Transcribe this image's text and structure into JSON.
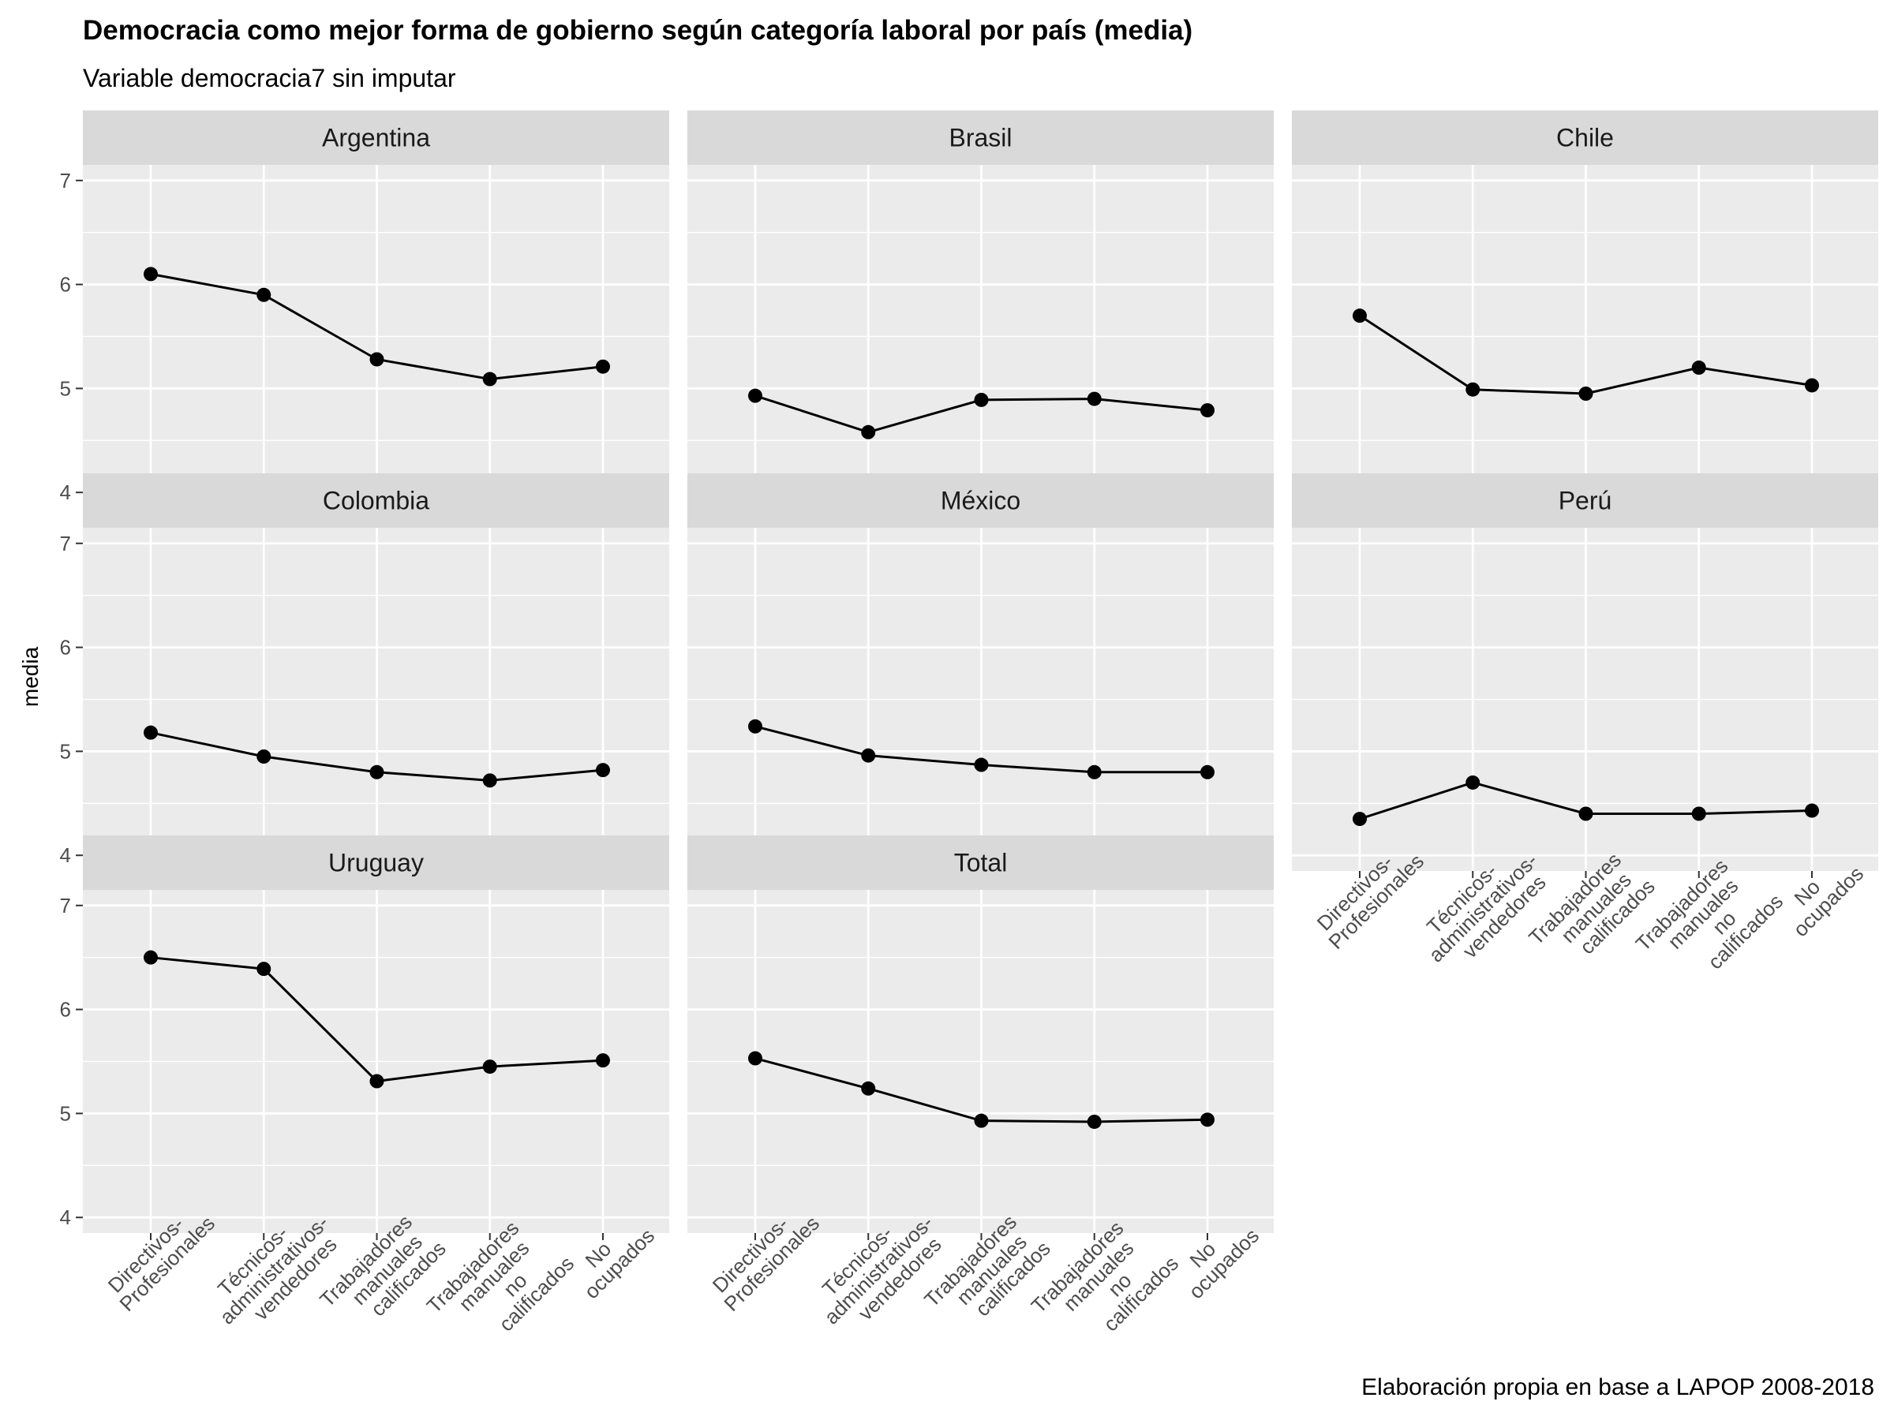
{
  "title": "Democracia como mejor forma de gobierno según categoría laboral por país (media)",
  "subtitle": "Variable democracia7 sin imputar",
  "caption": "Elaboración propia en base a LAPOP 2008-2018",
  "chart_data": {
    "type": "line",
    "ylabel": "media",
    "xlabel": "",
    "ylim": [
      3.85,
      7.15
    ],
    "y_ticks": [
      "4",
      "5",
      "6",
      "7"
    ],
    "grid": true,
    "categories": [
      [
        "Directivos-",
        "Profesionales"
      ],
      [
        "Técnicos-",
        "administrativos-",
        "vendedores"
      ],
      [
        "Trabajadores",
        "manuales",
        "calificados"
      ],
      [
        "Trabajadores",
        "manuales",
        "no",
        "calificados"
      ],
      [
        "No",
        "ocupados"
      ]
    ],
    "facets": [
      {
        "name": "Argentina",
        "values": [
          6.1,
          5.9,
          5.28,
          5.09,
          5.21
        ]
      },
      {
        "name": "Brasil",
        "values": [
          4.93,
          4.58,
          4.89,
          4.9,
          4.79
        ]
      },
      {
        "name": "Chile",
        "values": [
          5.7,
          4.99,
          4.95,
          5.2,
          5.03
        ]
      },
      {
        "name": "Colombia",
        "values": [
          5.18,
          4.95,
          4.8,
          4.72,
          4.82
        ]
      },
      {
        "name": "México",
        "values": [
          5.24,
          4.96,
          4.87,
          4.8,
          4.8
        ]
      },
      {
        "name": "Perú",
        "values": [
          4.35,
          4.7,
          4.4,
          4.4,
          4.43
        ]
      },
      {
        "name": "Uruguay",
        "values": [
          6.5,
          6.39,
          5.31,
          5.45,
          5.51
        ]
      },
      {
        "name": "Total",
        "values": [
          5.53,
          5.24,
          4.93,
          4.92,
          4.94
        ]
      }
    ]
  }
}
